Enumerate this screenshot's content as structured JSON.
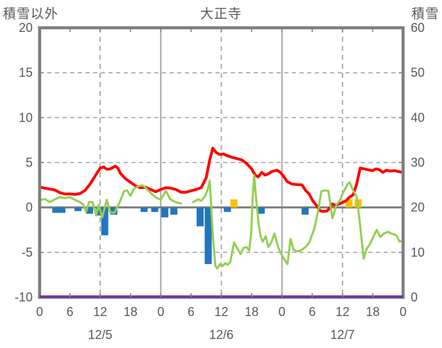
{
  "header": {
    "left_axis_title": "積雪以外",
    "chart_title": "大正寺",
    "right_axis_title": "積雪"
  },
  "colors": {
    "red_line": "#FF0000",
    "green_line": "#92D050",
    "blue_bars": "#2376BE",
    "yellow_bars": "#FFC000",
    "purple_line": "#7030A0",
    "frame": "#808080",
    "gridline": "#A6A6A6",
    "day_boundary": "#9E9E9E",
    "zero_line": "#808080",
    "text": "#595959"
  },
  "chart_data": {
    "type": "combo (line + bar, dual axis)",
    "title": "大正寺",
    "x_unit": "hour over 3 days",
    "x_range": [
      0,
      72
    ],
    "x_ticks": {
      "hours": [
        0,
        6,
        12,
        18,
        24,
        30,
        36,
        42,
        48,
        54,
        60,
        66,
        72
      ],
      "labels": [
        "0",
        "6",
        "12",
        "18",
        "0",
        "6",
        "12",
        "18",
        "0",
        "6",
        "12",
        "18",
        "0"
      ]
    },
    "date_labels": [
      {
        "label": "12/5",
        "center_hour": 12
      },
      {
        "label": "12/6",
        "center_hour": 36
      },
      {
        "label": "12/7",
        "center_hour": 60
      }
    ],
    "left_axis": {
      "title": "積雪以外",
      "min": -10,
      "max": 20,
      "ticks": [
        20,
        15,
        10,
        5,
        0,
        -5,
        -10
      ]
    },
    "right_axis": {
      "title": "積雪",
      "min": 0,
      "max": 60,
      "ticks": [
        60,
        50,
        40,
        30,
        20,
        10,
        0
      ]
    },
    "gridlines": {
      "horizontal_dashed_left_values": [
        15,
        10,
        5,
        -5
      ],
      "vertical_dashed_hours": [
        12,
        36,
        60
      ],
      "vertical_solid_hours": [
        24,
        48
      ],
      "zero_line_value": 0
    },
    "series": [
      {
        "name": "red-line",
        "type": "line",
        "axis": "left",
        "color": "#FF0000",
        "stroke_width": 4,
        "points": [
          [
            0,
            2.3
          ],
          [
            1,
            2.15
          ],
          [
            2,
            2.05
          ],
          [
            3,
            1.95
          ],
          [
            4,
            1.65
          ],
          [
            5,
            1.5
          ],
          [
            6,
            1.5
          ],
          [
            7,
            1.45
          ],
          [
            8,
            1.55
          ],
          [
            9,
            1.9
          ],
          [
            10,
            2.6
          ],
          [
            11,
            3.5
          ],
          [
            12,
            4.4
          ],
          [
            12.7,
            4.5
          ],
          [
            13.3,
            4.25
          ],
          [
            14,
            4.3
          ],
          [
            15,
            4.6
          ],
          [
            15.5,
            4.4
          ],
          [
            16,
            3.8
          ],
          [
            17,
            3.2
          ],
          [
            18,
            2.8
          ],
          [
            19,
            2.4
          ],
          [
            20,
            2.2
          ],
          [
            21,
            2.25
          ],
          [
            22,
            2.0
          ],
          [
            23,
            1.75
          ],
          [
            24,
            2.0
          ],
          [
            25,
            2.2
          ],
          [
            26,
            2.15
          ],
          [
            27,
            2.0
          ],
          [
            28,
            1.7
          ],
          [
            29,
            1.7
          ],
          [
            30,
            1.85
          ],
          [
            31,
            2.0
          ],
          [
            32,
            2.2
          ],
          [
            33,
            3.3
          ],
          [
            33.7,
            5.3
          ],
          [
            34.3,
            6.6
          ],
          [
            35,
            6.1
          ],
          [
            35.7,
            5.9
          ],
          [
            36.5,
            5.95
          ],
          [
            37,
            5.8
          ],
          [
            38,
            5.6
          ],
          [
            39,
            5.45
          ],
          [
            40,
            5.3
          ],
          [
            41,
            4.9
          ],
          [
            42,
            4.3
          ],
          [
            42.7,
            3.6
          ],
          [
            43.3,
            3.4
          ],
          [
            44,
            3.9
          ],
          [
            44.7,
            3.6
          ],
          [
            45.5,
            3.8
          ],
          [
            46,
            4.0
          ],
          [
            47,
            4.15
          ],
          [
            47.7,
            3.9
          ],
          [
            48.3,
            3.5
          ],
          [
            49,
            2.9
          ],
          [
            50,
            2.6
          ],
          [
            51,
            2.55
          ],
          [
            52,
            2.5
          ],
          [
            52.7,
            1.9
          ],
          [
            53.4,
            1.5
          ],
          [
            54.1,
            0.75
          ],
          [
            54.8,
            0.25
          ],
          [
            55.5,
            -0.35
          ],
          [
            56.2,
            -0.45
          ],
          [
            56.9,
            -0.4
          ],
          [
            57.6,
            0.0
          ],
          [
            58,
            0.4
          ],
          [
            58.5,
            0.25
          ],
          [
            59.2,
            0.35
          ],
          [
            60,
            0.55
          ],
          [
            60.7,
            0.75
          ],
          [
            61.4,
            1.15
          ],
          [
            62.1,
            1.4
          ],
          [
            62.8,
            2.6
          ],
          [
            63.5,
            4.4
          ],
          [
            64.2,
            4.3
          ],
          [
            65,
            4.2
          ],
          [
            66,
            4.1
          ],
          [
            66.6,
            4.3
          ],
          [
            67.3,
            4.2
          ],
          [
            68,
            3.9
          ],
          [
            68.7,
            4.15
          ],
          [
            69.5,
            4.05
          ],
          [
            70.3,
            4.1
          ],
          [
            71,
            4.0
          ],
          [
            72,
            3.9
          ]
        ]
      },
      {
        "name": "green-line",
        "type": "line",
        "axis": "left",
        "color": "#92D050",
        "stroke_width": 3,
        "points": [
          [
            0,
            0.8
          ],
          [
            1,
            0.95
          ],
          [
            2,
            0.6
          ],
          [
            3,
            0.9
          ],
          [
            4,
            1.15
          ],
          [
            5,
            1.05
          ],
          [
            6,
            1.15
          ],
          [
            7,
            0.85
          ],
          [
            8,
            0.6
          ],
          [
            8.7,
            0.3
          ],
          [
            9.2,
            -0.5
          ],
          [
            9.8,
            0.6
          ],
          [
            10.5,
            0.6
          ],
          [
            11.2,
            -0.9
          ],
          [
            11.7,
            0.3
          ],
          [
            12.4,
            -1.1
          ],
          [
            13.3,
            0.85
          ],
          [
            14,
            -0.55
          ],
          [
            14.8,
            -0.6
          ],
          [
            15.8,
            0.5
          ],
          [
            16.7,
            1.8
          ],
          [
            17.3,
            1.9
          ],
          [
            18,
            1.3
          ],
          [
            18.7,
            2.1
          ],
          [
            19.7,
            2.4
          ],
          [
            20.4,
            2.45
          ],
          [
            21,
            2.2
          ],
          [
            22.2,
            1.5
          ],
          [
            23.1,
            1.1
          ],
          [
            24,
            0.85
          ],
          [
            25,
            1.85
          ],
          [
            25.9,
            0.9
          ],
          [
            26.9,
            0.6
          ],
          [
            28,
            0.45
          ],
          null,
          [
            30.4,
            0.6
          ],
          [
            31.4,
            0.9
          ],
          [
            32,
            0.75
          ],
          [
            32.8,
            1.3
          ],
          [
            33.3,
            2.0
          ],
          [
            33.7,
            3.0
          ],
          [
            34.3,
            -3.0
          ],
          [
            34.8,
            -6.5
          ],
          [
            35.2,
            -6.8
          ],
          [
            35.8,
            -6.3
          ],
          [
            36.3,
            -6.5
          ],
          [
            36.8,
            -6.2
          ],
          [
            37.3,
            -6.4
          ],
          [
            37.8,
            -6.0
          ],
          [
            38.5,
            -3.9
          ],
          [
            39.2,
            -4.6
          ],
          [
            39.8,
            -5.2
          ],
          [
            40.4,
            -4.5
          ],
          [
            41,
            -4.4
          ],
          [
            41.5,
            -4.8
          ],
          [
            41.9,
            -3.0
          ],
          [
            42.2,
            1.0
          ],
          [
            42.5,
            3.6
          ],
          [
            43,
            0.3
          ],
          [
            43.4,
            -1.9
          ],
          [
            43.8,
            -3.3
          ],
          [
            44.2,
            -3.8
          ],
          [
            44.8,
            -3.2
          ],
          [
            45.3,
            -4.4
          ],
          [
            45.9,
            -3.9
          ],
          [
            46.5,
            -2.9
          ],
          [
            47.3,
            -4.5
          ],
          [
            47.9,
            -5.2
          ],
          [
            48.6,
            -5.9
          ],
          [
            49.1,
            -6.3
          ],
          [
            49.7,
            -3.5
          ],
          [
            50.3,
            -4.7
          ],
          [
            51,
            -4.9
          ],
          [
            51.7,
            -4.8
          ],
          [
            52.7,
            -4.4
          ],
          [
            53.4,
            -3.9
          ],
          [
            54.4,
            -2.4
          ],
          [
            55.2,
            -0.3
          ],
          [
            55.8,
            1.8
          ],
          [
            56.5,
            1.9
          ],
          [
            57.2,
            1.85
          ],
          [
            58,
            -1.2
          ],
          [
            58.8,
            0.3
          ],
          [
            59.5,
            0.8
          ],
          [
            60,
            1.5
          ],
          [
            61,
            2.6
          ],
          [
            61.4,
            2.8
          ],
          [
            62.1,
            1.9
          ],
          [
            62.8,
            1.2
          ],
          [
            63.4,
            -1.5
          ],
          [
            64.2,
            -5.7
          ],
          [
            64.8,
            -4.6
          ],
          [
            65.4,
            -4.1
          ],
          [
            66,
            -3.4
          ],
          [
            66.8,
            -2.5
          ],
          [
            67.5,
            -3.3
          ],
          [
            68.2,
            -2.9
          ],
          [
            69,
            -2.7
          ],
          [
            69.6,
            -2.9
          ],
          [
            70.3,
            -3.0
          ],
          [
            70.8,
            -3.2
          ],
          [
            71.3,
            -3.8
          ],
          [
            72,
            -3.7
          ]
        ]
      },
      {
        "name": "blue-bars",
        "type": "bar",
        "axis": "left",
        "color": "#2376BE",
        "bar_width_hours": 1.4,
        "points": [
          [
            3.2,
            -0.6
          ],
          [
            4.4,
            -0.6
          ],
          [
            7.6,
            -0.4
          ],
          [
            9.9,
            -0.7
          ],
          [
            11.9,
            -0.9
          ],
          [
            12.9,
            -3.1
          ],
          [
            14.7,
            -0.8
          ],
          [
            20.7,
            -0.5
          ],
          [
            22.8,
            -0.5
          ],
          [
            24.8,
            -1.1
          ],
          [
            26.6,
            -0.8
          ],
          [
            31.8,
            -2.1
          ],
          [
            33.4,
            -6.3
          ],
          [
            37.2,
            -0.5
          ],
          [
            43.9,
            -0.7
          ],
          [
            52.6,
            -0.8
          ]
        ]
      },
      {
        "name": "yellow-bars",
        "type": "bar",
        "axis": "left",
        "color": "#FFC000",
        "bar_width_hours": 1.4,
        "points": [
          [
            38.5,
            0.9
          ],
          [
            61.3,
            0.9
          ],
          [
            63.1,
            0.9
          ]
        ]
      },
      {
        "name": "purple-line",
        "type": "line",
        "axis": "right",
        "color": "#7030A0",
        "stroke_width": 3.5,
        "points": [
          [
            0,
            0
          ],
          [
            72,
            0
          ]
        ]
      }
    ]
  }
}
